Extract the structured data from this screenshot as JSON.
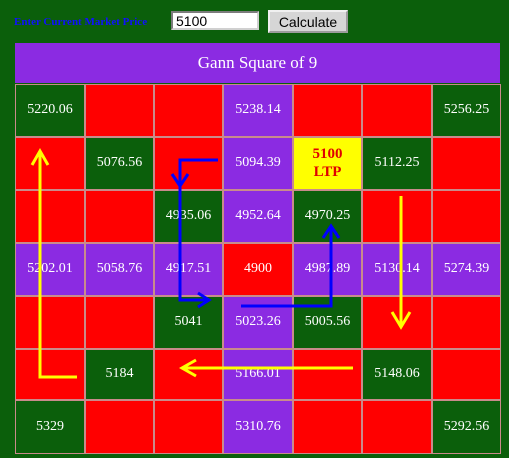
{
  "form": {
    "label": "Enter Current Market Price",
    "price_value": "5100",
    "calculate_label": "Calculate"
  },
  "grid": {
    "title": "Gann Square of 9",
    "cells": [
      [
        "5220.06",
        "",
        "",
        "5238.14",
        "",
        "",
        "5256.25"
      ],
      [
        "",
        "5076.56",
        "",
        "5094.39",
        "5100\nLTP",
        "5112.25",
        ""
      ],
      [
        "",
        "",
        "4935.06",
        "4952.64",
        "4970.25",
        "",
        ""
      ],
      [
        "5202.01",
        "5058.76",
        "4917.51",
        "4900",
        "4987.89",
        "5130.14",
        "5274.39"
      ],
      [
        "",
        "",
        "5041",
        "5023.26",
        "5005.56",
        "",
        ""
      ],
      [
        "",
        "5184",
        "",
        "5166.01",
        "",
        "5148.06",
        ""
      ],
      [
        "5329",
        "",
        "",
        "5310.76",
        "",
        "",
        "5292.56"
      ]
    ],
    "colors": [
      [
        "green",
        "red",
        "red",
        "purple",
        "red",
        "red",
        "green"
      ],
      [
        "red",
        "green",
        "red",
        "purple",
        "yellow",
        "green",
        "red"
      ],
      [
        "red",
        "red",
        "green",
        "purple",
        "green",
        "red",
        "red"
      ],
      [
        "purple",
        "purple",
        "purple",
        "red",
        "purple",
        "purple",
        "purple"
      ],
      [
        "red",
        "red",
        "green",
        "purple",
        "green",
        "red",
        "red"
      ],
      [
        "red",
        "green",
        "red",
        "purple",
        "red",
        "green",
        "red"
      ],
      [
        "green",
        "red",
        "red",
        "purple",
        "red",
        "red",
        "green"
      ]
    ]
  },
  "palette": {
    "red": "#ff0000",
    "green": "#0b5f0b",
    "purple": "#8b2be2",
    "yellow": "#ffff00",
    "arrow_yellow": "#ffff00",
    "arrow_blue": "#0000ff"
  }
}
